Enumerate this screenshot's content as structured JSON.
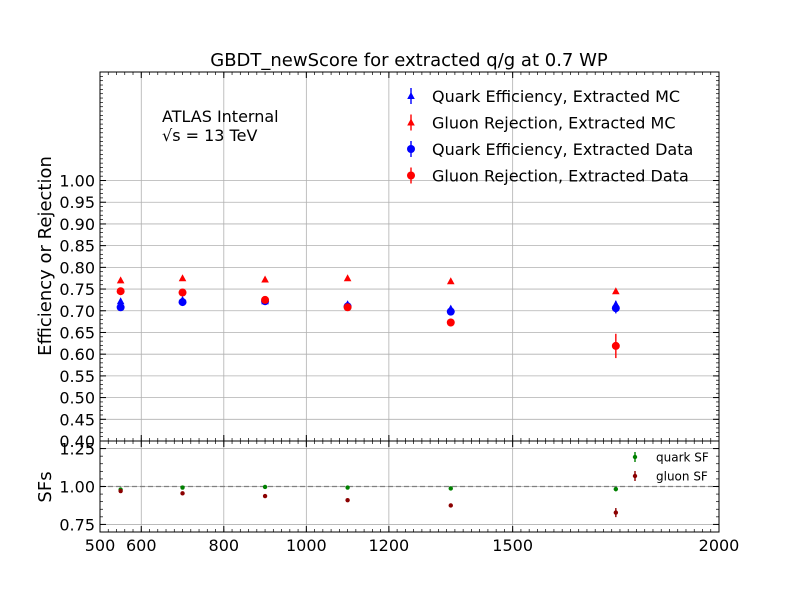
{
  "chart_data": {
    "type": "scatter",
    "title": "GBDT_newScore for extracted q/g at 0.7 WP",
    "annotation": {
      "experiment": "ATLAS Internal",
      "energy": "√s =  13 TeV"
    },
    "x": [
      550,
      700,
      900,
      1100,
      1350,
      1750
    ],
    "xlim": [
      500,
      2000
    ],
    "xticks": [
      500,
      600,
      800,
      1000,
      1200,
      1500,
      2000
    ],
    "xticklabels": [
      "500",
      "600",
      "800",
      "1000",
      "1200",
      "1500",
      "2000"
    ],
    "colors": {
      "quark": "#0000ff",
      "gluon": "#ff0000",
      "quark_sf": "#008000",
      "gluon_sf": "#8b0000"
    },
    "panels": [
      {
        "id": "main",
        "ylabel": "Efficiency or Rejection",
        "ylim": [
          0.4,
          1.25
        ],
        "yticks": [
          0.4,
          0.45,
          0.5,
          0.55,
          0.6,
          0.65,
          0.7,
          0.75,
          0.8,
          0.85,
          0.9,
          0.95,
          1.0
        ],
        "yticklabels": [
          "0.40",
          "0.45",
          "0.50",
          "0.55",
          "0.60",
          "0.65",
          "0.70",
          "0.75",
          "0.80",
          "0.85",
          "0.90",
          "0.95",
          "1.00"
        ],
        "grid": true,
        "legend_position": "top-right",
        "series": [
          {
            "name": "Quark Efficiency, Extracted MC",
            "color": "#0000ff",
            "marker": "triangle",
            "values": [
              0.722,
              0.725,
              0.722,
              0.715,
              0.705,
              0.715
            ],
            "errors": [
              0.003,
              0.003,
              0.003,
              0.004,
              0.005,
              0.008
            ]
          },
          {
            "name": "Gluon Rejection, Extracted MC",
            "color": "#ff0000",
            "marker": "triangle",
            "values": [
              0.77,
              0.775,
              0.772,
              0.775,
              0.768,
              0.745
            ],
            "errors": [
              0.003,
              0.003,
              0.003,
              0.003,
              0.004,
              0.004
            ]
          },
          {
            "name": "Quark Efficiency, Extracted Data",
            "color": "#0000ff",
            "marker": "circle",
            "values": [
              0.708,
              0.72,
              0.722,
              0.71,
              0.698,
              0.706
            ],
            "errors": [
              0.004,
              0.004,
              0.004,
              0.005,
              0.007,
              0.012
            ]
          },
          {
            "name": "Gluon Rejection, Extracted Data",
            "color": "#ff0000",
            "marker": "circle",
            "values": [
              0.745,
              0.742,
              0.725,
              0.708,
              0.673,
              0.619
            ],
            "errors": [
              0.004,
              0.004,
              0.004,
              0.005,
              0.009,
              0.028
            ]
          }
        ]
      },
      {
        "id": "ratio",
        "ylabel": "SFs",
        "ylim": [
          0.7,
          1.3
        ],
        "yticks": [
          0.75,
          1.0,
          1.25
        ],
        "yticklabels": [
          "0.75",
          "1.00",
          "1.25"
        ],
        "reference_line": 1.0,
        "grid": true,
        "legend_position": "top-right",
        "series": [
          {
            "name": "quark SF",
            "color": "#008000",
            "marker": "circle",
            "values": [
              0.98,
              0.993,
              0.997,
              0.993,
              0.987,
              0.983
            ],
            "errors": [
              0.006,
              0.006,
              0.006,
              0.007,
              0.009,
              0.015
            ]
          },
          {
            "name": "gluon SF",
            "color": "#8b0000",
            "marker": "circle",
            "values": [
              0.97,
              0.955,
              0.937,
              0.91,
              0.875,
              0.828
            ],
            "errors": [
              0.006,
              0.006,
              0.006,
              0.007,
              0.01,
              0.03
            ]
          }
        ]
      }
    ]
  }
}
